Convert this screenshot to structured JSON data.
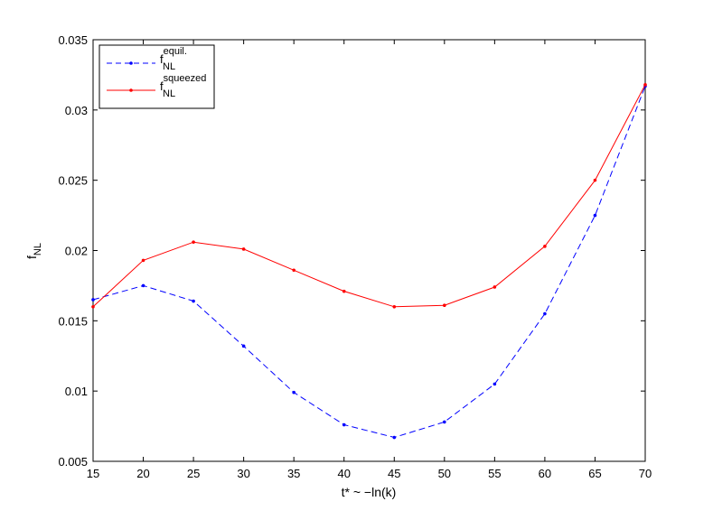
{
  "chart_data": {
    "type": "line",
    "xlabel": "t* ~ −ln(k)",
    "ylabel_main": "f",
    "ylabel_sub": "NL",
    "xlim": [
      15,
      70
    ],
    "ylim": [
      0.005,
      0.035
    ],
    "xticks": [
      15,
      20,
      25,
      30,
      35,
      40,
      45,
      50,
      55,
      60,
      65,
      70
    ],
    "yticks": [
      0.005,
      0.01,
      0.015,
      0.02,
      0.025,
      0.03,
      0.035
    ],
    "ytick_labels": [
      "0.005",
      "0.01",
      "0.015",
      "0.02",
      "0.025",
      "0.03",
      "0.035"
    ],
    "grid": false,
    "legend_position": "top-left",
    "x": [
      15,
      20,
      25,
      30,
      35,
      40,
      45,
      50,
      55,
      60,
      65,
      70
    ],
    "series": [
      {
        "name_main": "f",
        "name_sup": "equil.",
        "name_sub": "NL",
        "color": "#0000ff",
        "style": "dashed",
        "values": [
          0.0165,
          0.0175,
          0.0164,
          0.0132,
          0.0099,
          0.0076,
          0.0067,
          0.0078,
          0.0105,
          0.0155,
          0.0225,
          0.0317
        ]
      },
      {
        "name_main": "f",
        "name_sup": "squeezed",
        "name_sub": "NL",
        "color": "#ff0000",
        "style": "solid",
        "values": [
          0.016,
          0.0193,
          0.0206,
          0.0201,
          0.0186,
          0.0171,
          0.016,
          0.0161,
          0.0174,
          0.0203,
          0.025,
          0.0318
        ]
      }
    ]
  }
}
